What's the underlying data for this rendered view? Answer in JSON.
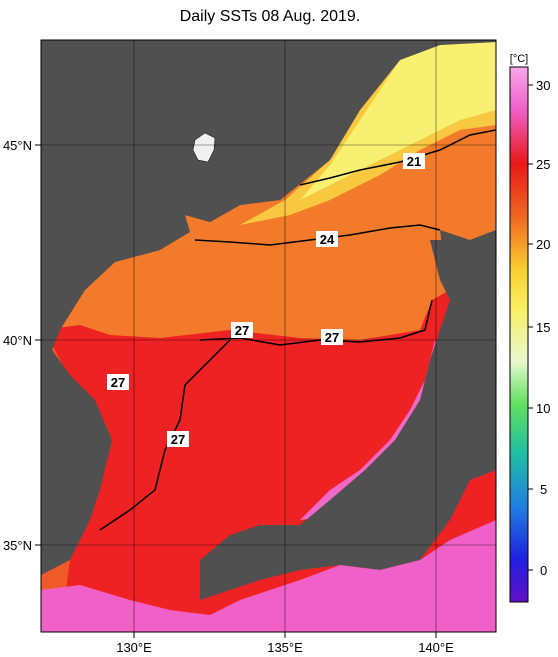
{
  "title": "Daily SSTs 08 Aug. 2019.",
  "longitude_ticks": [
    "130°E",
    "135°E",
    "140°E"
  ],
  "latitude_ticks": [
    "45°N",
    "40°N",
    "35°N"
  ],
  "colorbar": {
    "unit": "[°C]",
    "ticks": [
      "30",
      "25",
      "20",
      "15",
      "10",
      "5",
      "0"
    ]
  },
  "contour_labels": [
    "21",
    "24",
    "27",
    "27",
    "27",
    "27"
  ],
  "colors": {
    "land": "#505050",
    "warm_red": "#ee2020",
    "orange": "#f07828",
    "yellow": "#f8f060",
    "pink": "#f060c8"
  }
}
